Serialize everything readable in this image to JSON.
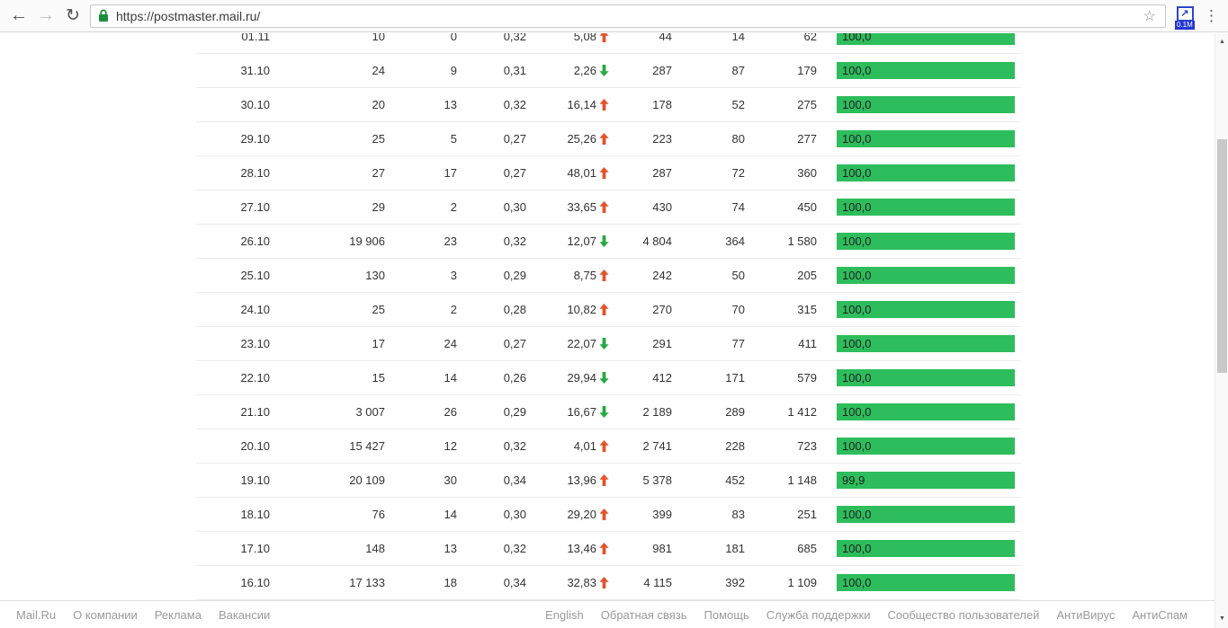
{
  "browser": {
    "url": "https://postmaster.mail.ru/",
    "extension_badge": "0.1M",
    "icons": {
      "back": "←",
      "forward": "→",
      "reload": "↻",
      "bookmark_star": "☆",
      "extension_arrow": "↗",
      "menu_dots": "⋮",
      "scroll_up": "▲",
      "scroll_down": "▼"
    },
    "accent_colors": {
      "lock_green": "#1e8e3e",
      "extension_blue": "#2b46c8"
    }
  },
  "chart_colors": {
    "bar_green": "#2dbd5c",
    "trend_up_red": "#e2532b",
    "trend_down_green": "#27a844"
  },
  "table": {
    "rows": [
      {
        "date": "01.11",
        "v1": "10",
        "v2": "0",
        "v3": "0,32",
        "pct": "5,08",
        "trend": "up",
        "v4": "44",
        "v5": "14",
        "v6": "62",
        "bar_label": "100,0",
        "bar_pct": 100
      },
      {
        "date": "31.10",
        "v1": "24",
        "v2": "9",
        "v3": "0,31",
        "pct": "2,26",
        "trend": "down",
        "v4": "287",
        "v5": "87",
        "v6": "179",
        "bar_label": "100,0",
        "bar_pct": 100
      },
      {
        "date": "30.10",
        "v1": "20",
        "v2": "13",
        "v3": "0,32",
        "pct": "16,14",
        "trend": "up",
        "v4": "178",
        "v5": "52",
        "v6": "275",
        "bar_label": "100,0",
        "bar_pct": 100
      },
      {
        "date": "29.10",
        "v1": "25",
        "v2": "5",
        "v3": "0,27",
        "pct": "25,26",
        "trend": "up",
        "v4": "223",
        "v5": "80",
        "v6": "277",
        "bar_label": "100,0",
        "bar_pct": 100
      },
      {
        "date": "28.10",
        "v1": "27",
        "v2": "17",
        "v3": "0,27",
        "pct": "48,01",
        "trend": "up",
        "v4": "287",
        "v5": "72",
        "v6": "360",
        "bar_label": "100,0",
        "bar_pct": 100
      },
      {
        "date": "27.10",
        "v1": "29",
        "v2": "2",
        "v3": "0,30",
        "pct": "33,65",
        "trend": "up",
        "v4": "430",
        "v5": "74",
        "v6": "450",
        "bar_label": "100,0",
        "bar_pct": 100
      },
      {
        "date": "26.10",
        "v1": "19 906",
        "v2": "23",
        "v3": "0,32",
        "pct": "12,07",
        "trend": "down",
        "v4": "4 804",
        "v5": "364",
        "v6": "1 580",
        "bar_label": "100,0",
        "bar_pct": 100
      },
      {
        "date": "25.10",
        "v1": "130",
        "v2": "3",
        "v3": "0,29",
        "pct": "8,75",
        "trend": "up",
        "v4": "242",
        "v5": "50",
        "v6": "205",
        "bar_label": "100,0",
        "bar_pct": 100
      },
      {
        "date": "24.10",
        "v1": "25",
        "v2": "2",
        "v3": "0,28",
        "pct": "10,82",
        "trend": "up",
        "v4": "270",
        "v5": "70",
        "v6": "315",
        "bar_label": "100,0",
        "bar_pct": 100
      },
      {
        "date": "23.10",
        "v1": "17",
        "v2": "24",
        "v3": "0,27",
        "pct": "22,07",
        "trend": "down",
        "v4": "291",
        "v5": "77",
        "v6": "411",
        "bar_label": "100,0",
        "bar_pct": 100
      },
      {
        "date": "22.10",
        "v1": "15",
        "v2": "14",
        "v3": "0,26",
        "pct": "29,94",
        "trend": "down",
        "v4": "412",
        "v5": "171",
        "v6": "579",
        "bar_label": "100,0",
        "bar_pct": 100
      },
      {
        "date": "21.10",
        "v1": "3 007",
        "v2": "26",
        "v3": "0,29",
        "pct": "16,67",
        "trend": "down",
        "v4": "2 189",
        "v5": "289",
        "v6": "1 412",
        "bar_label": "100,0",
        "bar_pct": 100
      },
      {
        "date": "20.10",
        "v1": "15 427",
        "v2": "12",
        "v3": "0,32",
        "pct": "4,01",
        "trend": "up",
        "v4": "2 741",
        "v5": "228",
        "v6": "723",
        "bar_label": "100,0",
        "bar_pct": 100
      },
      {
        "date": "19.10",
        "v1": "20 109",
        "v2": "30",
        "v3": "0,34",
        "pct": "13,96",
        "trend": "up",
        "v4": "5 378",
        "v5": "452",
        "v6": "1 148",
        "bar_label": "99,9",
        "bar_pct": 99.9
      },
      {
        "date": "18.10",
        "v1": "76",
        "v2": "14",
        "v3": "0,30",
        "pct": "29,20",
        "trend": "up",
        "v4": "399",
        "v5": "83",
        "v6": "251",
        "bar_label": "100,0",
        "bar_pct": 100
      },
      {
        "date": "17.10",
        "v1": "148",
        "v2": "13",
        "v3": "0,32",
        "pct": "13,46",
        "trend": "up",
        "v4": "981",
        "v5": "181",
        "v6": "685",
        "bar_label": "100,0",
        "bar_pct": 100
      },
      {
        "date": "16.10",
        "v1": "17 133",
        "v2": "18",
        "v3": "0,34",
        "pct": "32,83",
        "trend": "up",
        "v4": "4 115",
        "v5": "392",
        "v6": "1 109",
        "bar_label": "100,0",
        "bar_pct": 100
      }
    ]
  },
  "footer": {
    "left": [
      "Mail.Ru",
      "О компании",
      "Реклама",
      "Вакансии"
    ],
    "right": [
      "English",
      "Обратная связь",
      "Помощь",
      "Служба поддержки",
      "Сообщество пользователей",
      "АнтиВирус",
      "АнтиСпам"
    ]
  }
}
